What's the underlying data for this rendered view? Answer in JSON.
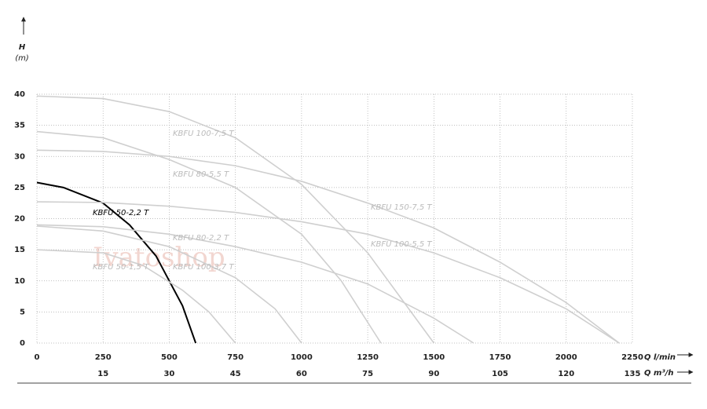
{
  "chart_data": {
    "type": "line",
    "y_label": "H",
    "y_unit": "(m)",
    "x_label": "Q l/min",
    "x2_label": "Q m³/h",
    "watermark": "Ivatoshop",
    "xlim": [
      0,
      2250
    ],
    "xticks": [
      0,
      250,
      500,
      750,
      1000,
      1250,
      1500,
      1750,
      2000,
      2250
    ],
    "x2lim": [
      0,
      135
    ],
    "x2ticks": [
      15,
      30,
      45,
      60,
      75,
      90,
      105,
      120,
      135
    ],
    "ylim": [
      0,
      40
    ],
    "yticks": [
      0,
      5,
      10,
      15,
      20,
      25,
      30,
      35,
      40
    ],
    "grid": true,
    "series": [
      {
        "name": "KBFU 100-7,5 T",
        "color": "#cfcfcf",
        "x": [
          0,
          250,
          500,
          750,
          1000,
          1250,
          1500
        ],
        "values": [
          39.7,
          39.3,
          37.2,
          33,
          25.5,
          14.5,
          0
        ]
      },
      {
        "name": "KBFU 80-5,5 T",
        "color": "#cfcfcf",
        "x": [
          0,
          250,
          500,
          750,
          1000,
          1150,
          1300
        ],
        "values": [
          34,
          33,
          29.5,
          25,
          17.5,
          10,
          0
        ]
      },
      {
        "name": "KBFU 150-7,5 T",
        "color": "#cfcfcf",
        "x": [
          0,
          250,
          500,
          750,
          1000,
          1250,
          1500,
          1750,
          2000,
          2200
        ],
        "values": [
          31,
          30.8,
          30,
          28.5,
          26,
          22.5,
          18.5,
          13,
          6.5,
          0
        ]
      },
      {
        "name": "KBFU 50-2,2 T",
        "color": "#000000",
        "x": [
          0,
          100,
          250,
          350,
          450,
          550,
          600
        ],
        "values": [
          25.8,
          25,
          22.5,
          19,
          14,
          6,
          0
        ]
      },
      {
        "name": "KBFU 100-5,5 T",
        "color": "#cfcfcf",
        "x": [
          0,
          250,
          500,
          750,
          1000,
          1250,
          1500,
          1750,
          2000,
          2200
        ],
        "values": [
          22.7,
          22.6,
          22,
          21,
          19.5,
          17.5,
          14.5,
          10.5,
          5.5,
          0
        ]
      },
      {
        "name": "KBFU 80-2,2 T",
        "color": "#cfcfcf",
        "x": [
          0,
          250,
          500,
          750,
          1000,
          1250,
          1500,
          1650
        ],
        "values": [
          19,
          18.7,
          17.5,
          15.5,
          13,
          9.5,
          4,
          0
        ]
      },
      {
        "name": "KBFU 100-3,7 T",
        "color": "#cfcfcf",
        "x": [
          0,
          250,
          500,
          750,
          900,
          1000
        ],
        "values": [
          18.8,
          18,
          15.5,
          10.5,
          5.5,
          0
        ]
      },
      {
        "name": "KBFU 50-1,5 T",
        "color": "#cfcfcf",
        "x": [
          0,
          250,
          400,
          550,
          650,
          750
        ],
        "values": [
          15,
          14.5,
          12.5,
          8.5,
          5,
          0
        ]
      }
    ]
  }
}
